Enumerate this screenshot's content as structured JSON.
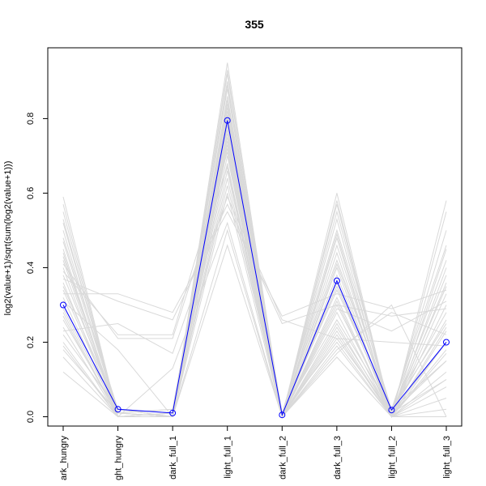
{
  "chart_data": {
    "type": "line",
    "title": "355",
    "xlabel": "",
    "ylabel": "log2(value+1)/sqrt(sum(log2(value+1)))",
    "categories": [
      "dark_hungry",
      "light_hungry",
      "dark_full_1",
      "light_full_1",
      "dark_full_2",
      "dark_full_3",
      "light_full_2",
      "light_full_3"
    ],
    "category_labels_shown": [
      "ark_hungry",
      "ght_hungry",
      "dark_full_1",
      "light_full_1",
      "dark_full_2",
      "dark_full_3",
      "light_full_2",
      "light_full_3"
    ],
    "ylim": [
      -0.025,
      0.99
    ],
    "y_ticks": [
      0.0,
      0.2,
      0.4,
      0.6,
      0.8
    ],
    "y_tick_labels": [
      "0.0",
      "0.2",
      "0.4",
      "0.6",
      "0.8"
    ],
    "grid": false,
    "highlight_series": {
      "color": "#0000ff",
      "values": [
        0.3,
        0.02,
        0.01,
        0.795,
        0.005,
        0.365,
        0.018,
        0.2
      ]
    },
    "background_series": {
      "color": "#d9d9d9",
      "values": [
        [
          0.59,
          0.0,
          0.0,
          0.95,
          0.0,
          0.6,
          0.0,
          0.0
        ],
        [
          0.55,
          0.0,
          0.0,
          0.92,
          0.0,
          0.57,
          0.0,
          0.1
        ],
        [
          0.52,
          0.01,
          0.0,
          0.9,
          0.0,
          0.55,
          0.01,
          0.15
        ],
        [
          0.5,
          0.0,
          0.01,
          0.88,
          0.0,
          0.53,
          0.0,
          0.2
        ],
        [
          0.48,
          0.02,
          0.0,
          0.86,
          0.01,
          0.5,
          0.02,
          0.25
        ],
        [
          0.45,
          0.0,
          0.0,
          0.84,
          0.0,
          0.48,
          0.0,
          0.3
        ],
        [
          0.43,
          0.01,
          0.02,
          0.83,
          0.0,
          0.46,
          0.01,
          0.35
        ],
        [
          0.4,
          0.0,
          0.0,
          0.82,
          0.0,
          0.44,
          0.0,
          0.4
        ],
        [
          0.38,
          0.02,
          0.01,
          0.81,
          0.01,
          0.42,
          0.02,
          0.42
        ],
        [
          0.36,
          0.0,
          0.0,
          0.8,
          0.0,
          0.4,
          0.0,
          0.45
        ],
        [
          0.34,
          0.01,
          0.0,
          0.79,
          0.0,
          0.38,
          0.01,
          0.38
        ],
        [
          0.32,
          0.0,
          0.01,
          0.78,
          0.0,
          0.36,
          0.0,
          0.33
        ],
        [
          0.3,
          0.02,
          0.0,
          0.77,
          0.01,
          0.34,
          0.02,
          0.28
        ],
        [
          0.28,
          0.0,
          0.0,
          0.76,
          0.0,
          0.32,
          0.0,
          0.24
        ],
        [
          0.26,
          0.01,
          0.02,
          0.75,
          0.0,
          0.3,
          0.01,
          0.2
        ],
        [
          0.24,
          0.0,
          0.0,
          0.74,
          0.0,
          0.28,
          0.0,
          0.18
        ],
        [
          0.22,
          0.02,
          0.01,
          0.73,
          0.01,
          0.26,
          0.02,
          0.15
        ],
        [
          0.2,
          0.0,
          0.0,
          0.72,
          0.0,
          0.25,
          0.0,
          0.12
        ],
        [
          0.18,
          0.01,
          0.0,
          0.7,
          0.0,
          0.24,
          0.01,
          0.1
        ],
        [
          0.16,
          0.0,
          0.01,
          0.68,
          0.0,
          0.23,
          0.0,
          0.08
        ],
        [
          0.42,
          0.0,
          0.0,
          0.66,
          0.0,
          0.22,
          0.0,
          0.05
        ],
        [
          0.47,
          0.01,
          0.0,
          0.64,
          0.0,
          0.21,
          0.01,
          0.5
        ],
        [
          0.53,
          0.0,
          0.01,
          0.62,
          0.01,
          0.2,
          0.0,
          0.55
        ],
        [
          0.12,
          0.0,
          0.0,
          0.6,
          0.0,
          0.19,
          0.0,
          0.58
        ],
        [
          0.35,
          0.02,
          0.0,
          0.85,
          0.0,
          0.41,
          0.02,
          0.46
        ],
        [
          0.44,
          0.0,
          0.01,
          0.89,
          0.0,
          0.49,
          0.0,
          0.36
        ],
        [
          0.29,
          0.01,
          0.0,
          0.79,
          0.0,
          0.35,
          0.01,
          0.26
        ],
        [
          0.57,
          0.0,
          0.0,
          0.93,
          0.0,
          0.58,
          0.0,
          0.02
        ],
        [
          0.41,
          0.21,
          0.21,
          0.67,
          0.0,
          0.31,
          0.0,
          0.17
        ],
        [
          0.39,
          0.22,
          0.22,
          0.71,
          0.0,
          0.29,
          0.23,
          0.31
        ],
        [
          0.33,
          0.33,
          0.28,
          0.55,
          0.27,
          0.33,
          0.29,
          0.34
        ],
        [
          0.37,
          0.31,
          0.26,
          0.57,
          0.25,
          0.3,
          0.27,
          0.29
        ],
        [
          0.31,
          0.18,
          0.0,
          0.46,
          0.0,
          0.16,
          0.0,
          0.23
        ],
        [
          0.27,
          0.0,
          0.0,
          0.5,
          0.0,
          0.18,
          0.28,
          0.22
        ],
        [
          0.19,
          0.0,
          0.13,
          0.52,
          0.0,
          0.17,
          0.3,
          0.0
        ],
        [
          0.23,
          0.25,
          0.17,
          0.59,
          0.26,
          0.21,
          0.2,
          0.19
        ]
      ]
    }
  }
}
